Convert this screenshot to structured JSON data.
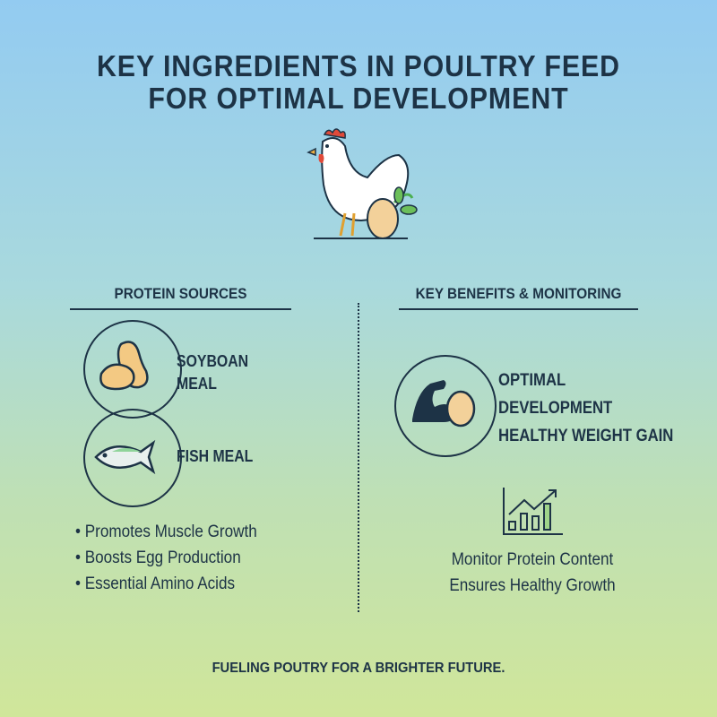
{
  "title": {
    "line1": "KEY INGREDIENTS IN POULTRY FEED",
    "line2": "FOR OPTIMAL DEVELOPMENT"
  },
  "hero": {
    "icon": "chicken-with-egg-icon"
  },
  "left": {
    "heading": "PROTEIN SOURCES",
    "items": [
      {
        "icon": "soybean-icon",
        "line1": "SOYBOAN",
        "line2": "MEAL"
      },
      {
        "icon": "fish-icon",
        "line1": "FISH MEAL"
      }
    ],
    "bullets": [
      "Promotes Muscle Growth",
      "Boosts Egg Production",
      "Essential Amino Acids"
    ]
  },
  "right": {
    "heading": "KEY BENEFITS & MONITORING",
    "benefit": {
      "icon": "muscle-egg-icon",
      "line1": "OPTIMAL",
      "line2": "DEVELOPMENT",
      "line3": "HEALTHY WEIGHT GAIN"
    },
    "monitor": {
      "icon": "growth-chart-icon",
      "line1": "Monitor Protein Content",
      "line2": "Ensures Healthy Growth"
    }
  },
  "footer": "FUELING POUTRY FOR A BRIGHTER FUTURE.",
  "colors": {
    "text": "#1d3346",
    "egg": "#f3d19a",
    "leaf": "#4caf50",
    "comb": "#e04a3a"
  }
}
